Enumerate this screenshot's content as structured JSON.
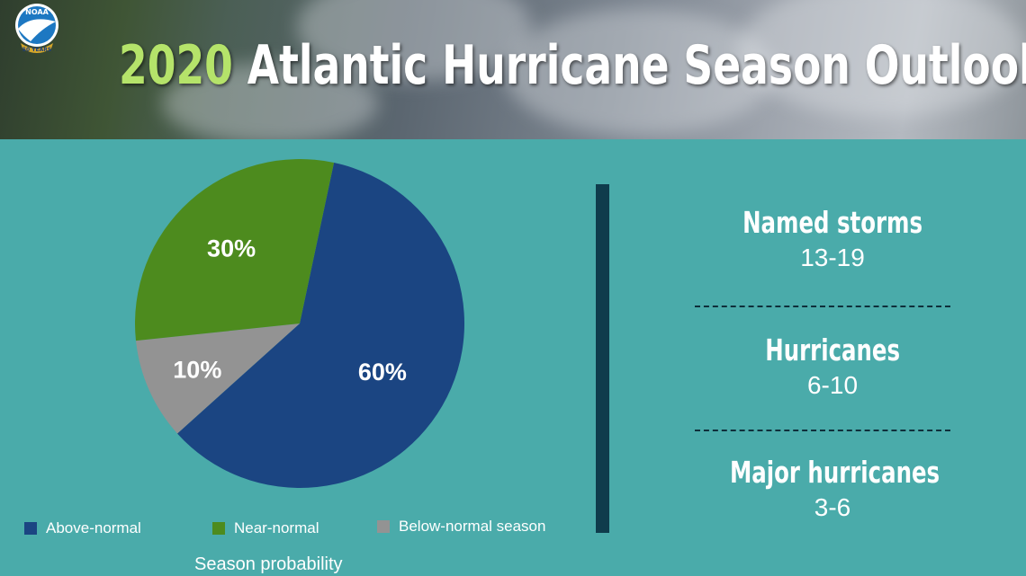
{
  "header": {
    "title_year": "2020",
    "title_rest": "Atlantic Hurricane Season Outlook",
    "logo": {
      "name": "NOAA",
      "anniversary": "50 YEARS"
    }
  },
  "chart_data": {
    "type": "pie",
    "title": "",
    "slices": [
      {
        "label": "Above-normal",
        "value": 60,
        "text": "60%",
        "color": "#1b4582"
      },
      {
        "label": "Below-normal season",
        "value": 10,
        "text": "10%",
        "color": "#939393"
      },
      {
        "label": "Near-normal",
        "value": 30,
        "text": "30%",
        "color": "#4d8b1e"
      }
    ],
    "legend": [
      {
        "label": "Above-normal",
        "color": "#1b4582"
      },
      {
        "label": "Near-normal",
        "color": "#4d8b1e"
      },
      {
        "label": "Below-normal season",
        "color": "#939393"
      }
    ],
    "legend_position": "bottom",
    "caption": "Season probability"
  },
  "stats": [
    {
      "name": "Named storms",
      "value": "13-19"
    },
    {
      "name": "Hurricanes",
      "value": "6-10"
    },
    {
      "name": "Major hurricanes",
      "value": "3-6"
    }
  ],
  "colors": {
    "background": "#4aabaa",
    "divider": "#0f3c4c",
    "accent": "#b5e36a"
  }
}
